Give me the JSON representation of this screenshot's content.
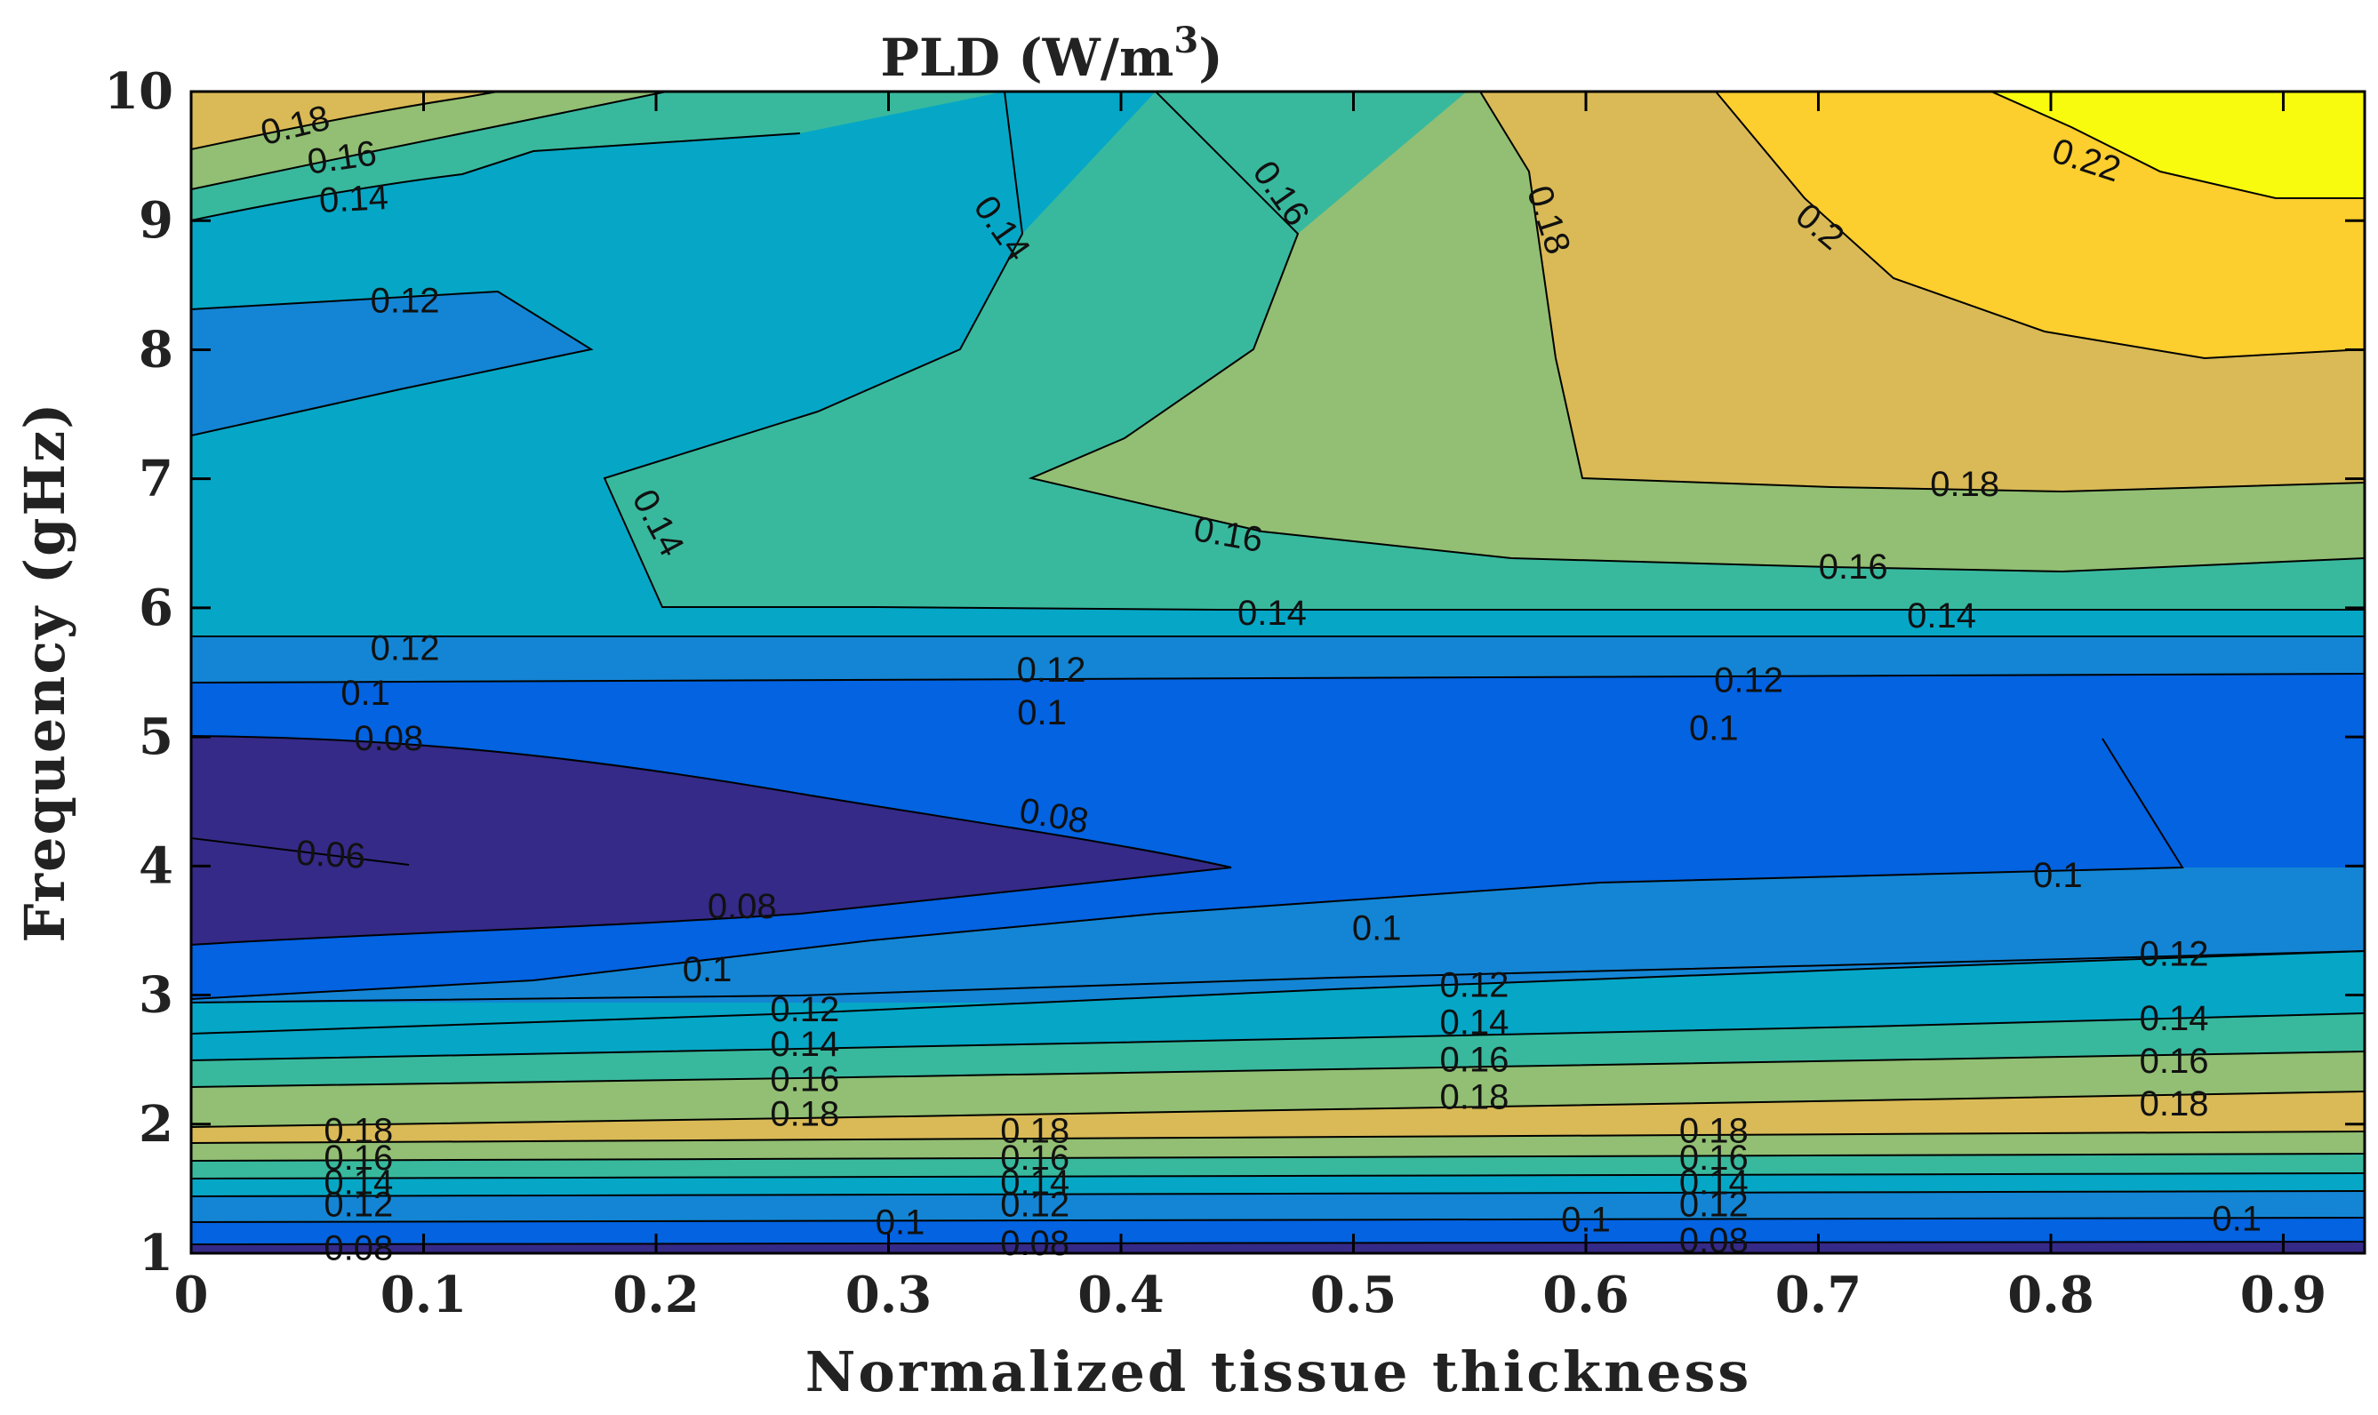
{
  "chart_data": {
    "type": "contour",
    "title": "PLD (W/m",
    "title_superscript": "3",
    "title_close": ")",
    "xlabel": "Normalized tissue thickness",
    "ylabel": "Frequency (gHz)",
    "xlim": [
      0,
      0.935
    ],
    "ylim": [
      1,
      10
    ],
    "xticks": [
      "0",
      "0.1",
      "0.2",
      "0.3",
      "0.4",
      "0.5",
      "0.6",
      "0.7",
      "0.8",
      "0.9"
    ],
    "xtick_values": [
      0,
      0.1,
      0.2,
      0.3,
      0.4,
      0.5,
      0.6,
      0.7,
      0.8,
      0.9
    ],
    "yticks": [
      "1",
      "2",
      "3",
      "4",
      "5",
      "6",
      "7",
      "8",
      "9",
      "10"
    ],
    "ytick_values": [
      1,
      2,
      3,
      4,
      5,
      6,
      7,
      8,
      9,
      10
    ],
    "colorscale": [
      "#352a87",
      "#0363e1",
      "#1485d4",
      "#06a7c6",
      "#38b99e",
      "#92bf73",
      "#d9ba56",
      "#fcce2e",
      "#f9fb0e"
    ],
    "band_levels": [
      "<0.08",
      "0.08-0.10",
      "0.10-0.12",
      "0.12-0.14",
      "0.14-0.16",
      "0.16-0.18",
      "0.18-0.20",
      "0.20-0.22",
      ">0.22"
    ],
    "contour_labels": [
      {
        "text": "0.18",
        "x": 0.045,
        "y": 9.72,
        "angle": -14
      },
      {
        "text": "0.16",
        "x": 0.065,
        "y": 9.47,
        "angle": -8
      },
      {
        "text": "0.14",
        "x": 0.07,
        "y": 9.15,
        "angle": -3
      },
      {
        "text": "0.12",
        "x": 0.092,
        "y": 8.36,
        "angle": 0
      },
      {
        "text": "0.14",
        "x": 0.348,
        "y": 8.93,
        "angle": 55
      },
      {
        "text": "0.16",
        "x": 0.468,
        "y": 9.2,
        "angle": 55
      },
      {
        "text": "0.18",
        "x": 0.583,
        "y": 9.0,
        "angle": 72
      },
      {
        "text": "0.2",
        "x": 0.7,
        "y": 8.94,
        "angle": 40
      },
      {
        "text": "0.22",
        "x": 0.815,
        "y": 9.45,
        "angle": 18
      },
      {
        "text": "0.14",
        "x": 0.2,
        "y": 6.65,
        "angle": 62
      },
      {
        "text": "0.16",
        "x": 0.446,
        "y": 6.55,
        "angle": 10
      },
      {
        "text": "0.18",
        "x": 0.763,
        "y": 6.94,
        "angle": 0
      },
      {
        "text": "0.16",
        "x": 0.715,
        "y": 6.3,
        "angle": 0
      },
      {
        "text": "0.14",
        "x": 0.465,
        "y": 5.94,
        "angle": 0
      },
      {
        "text": "0.14",
        "x": 0.753,
        "y": 5.92,
        "angle": 0
      },
      {
        "text": "0.12",
        "x": 0.092,
        "y": 5.67,
        "angle": 0
      },
      {
        "text": "0.12",
        "x": 0.37,
        "y": 5.5,
        "angle": 0
      },
      {
        "text": "0.12",
        "x": 0.67,
        "y": 5.42,
        "angle": 0
      },
      {
        "text": "0.1",
        "x": 0.075,
        "y": 5.32,
        "angle": 0
      },
      {
        "text": "0.1",
        "x": 0.366,
        "y": 5.17,
        "angle": 0
      },
      {
        "text": "0.1",
        "x": 0.655,
        "y": 5.05,
        "angle": 0
      },
      {
        "text": "0.08",
        "x": 0.085,
        "y": 4.97,
        "angle": 0
      },
      {
        "text": "0.08",
        "x": 0.371,
        "y": 4.37,
        "angle": 10
      },
      {
        "text": "0.06",
        "x": 0.06,
        "y": 4.07,
        "angle": 3
      },
      {
        "text": "0.08",
        "x": 0.237,
        "y": 3.67,
        "angle": 0
      },
      {
        "text": "0.1",
        "x": 0.222,
        "y": 3.18,
        "angle": 0
      },
      {
        "text": "0.1",
        "x": 0.51,
        "y": 3.5,
        "angle": 0
      },
      {
        "text": "0.1",
        "x": 0.803,
        "y": 3.91,
        "angle": 0
      },
      {
        "text": "0.12",
        "x": 0.264,
        "y": 2.87,
        "angle": 0
      },
      {
        "text": "0.14",
        "x": 0.264,
        "y": 2.6,
        "angle": 0
      },
      {
        "text": "0.16",
        "x": 0.264,
        "y": 2.33,
        "angle": 0
      },
      {
        "text": "0.18",
        "x": 0.264,
        "y": 2.06,
        "angle": 0
      },
      {
        "text": "0.12",
        "x": 0.552,
        "y": 3.06,
        "angle": 0
      },
      {
        "text": "0.14",
        "x": 0.552,
        "y": 2.77,
        "angle": 0
      },
      {
        "text": "0.16",
        "x": 0.552,
        "y": 2.48,
        "angle": 0
      },
      {
        "text": "0.18",
        "x": 0.552,
        "y": 2.19,
        "angle": 0
      },
      {
        "text": "0.12",
        "x": 0.853,
        "y": 3.3,
        "angle": 0
      },
      {
        "text": "0.14",
        "x": 0.853,
        "y": 2.8,
        "angle": 0
      },
      {
        "text": "0.16",
        "x": 0.853,
        "y": 2.47,
        "angle": 0
      },
      {
        "text": "0.18",
        "x": 0.853,
        "y": 2.14,
        "angle": 0
      },
      {
        "text": "0.18",
        "x": 0.072,
        "y": 1.93,
        "angle": 0
      },
      {
        "text": "0.16",
        "x": 0.072,
        "y": 1.72,
        "angle": 0
      },
      {
        "text": "0.14",
        "x": 0.072,
        "y": 1.53,
        "angle": 0
      },
      {
        "text": "0.12",
        "x": 0.072,
        "y": 1.36,
        "angle": 0
      },
      {
        "text": "0.08",
        "x": 0.072,
        "y": 1.02,
        "angle": 0
      },
      {
        "text": "0.18",
        "x": 0.363,
        "y": 1.93,
        "angle": 0
      },
      {
        "text": "0.16",
        "x": 0.363,
        "y": 1.72,
        "angle": 0
      },
      {
        "text": "0.14",
        "x": 0.363,
        "y": 1.53,
        "angle": 0
      },
      {
        "text": "0.12",
        "x": 0.363,
        "y": 1.36,
        "angle": 0
      },
      {
        "text": "0.08",
        "x": 0.363,
        "y": 1.06,
        "angle": 0
      },
      {
        "text": "0.1",
        "x": 0.305,
        "y": 1.22,
        "angle": 0
      },
      {
        "text": "0.1",
        "x": 0.6,
        "y": 1.24,
        "angle": 0
      },
      {
        "text": "0.1",
        "x": 0.88,
        "y": 1.25,
        "angle": 0
      },
      {
        "text": "0.18",
        "x": 0.655,
        "y": 1.93,
        "angle": 0
      },
      {
        "text": "0.16",
        "x": 0.655,
        "y": 1.72,
        "angle": 0
      },
      {
        "text": "0.14",
        "x": 0.655,
        "y": 1.53,
        "angle": 0
      },
      {
        "text": "0.12",
        "x": 0.655,
        "y": 1.36,
        "angle": 0
      },
      {
        "text": "0.08",
        "x": 0.655,
        "y": 1.08,
        "angle": 0
      }
    ]
  }
}
